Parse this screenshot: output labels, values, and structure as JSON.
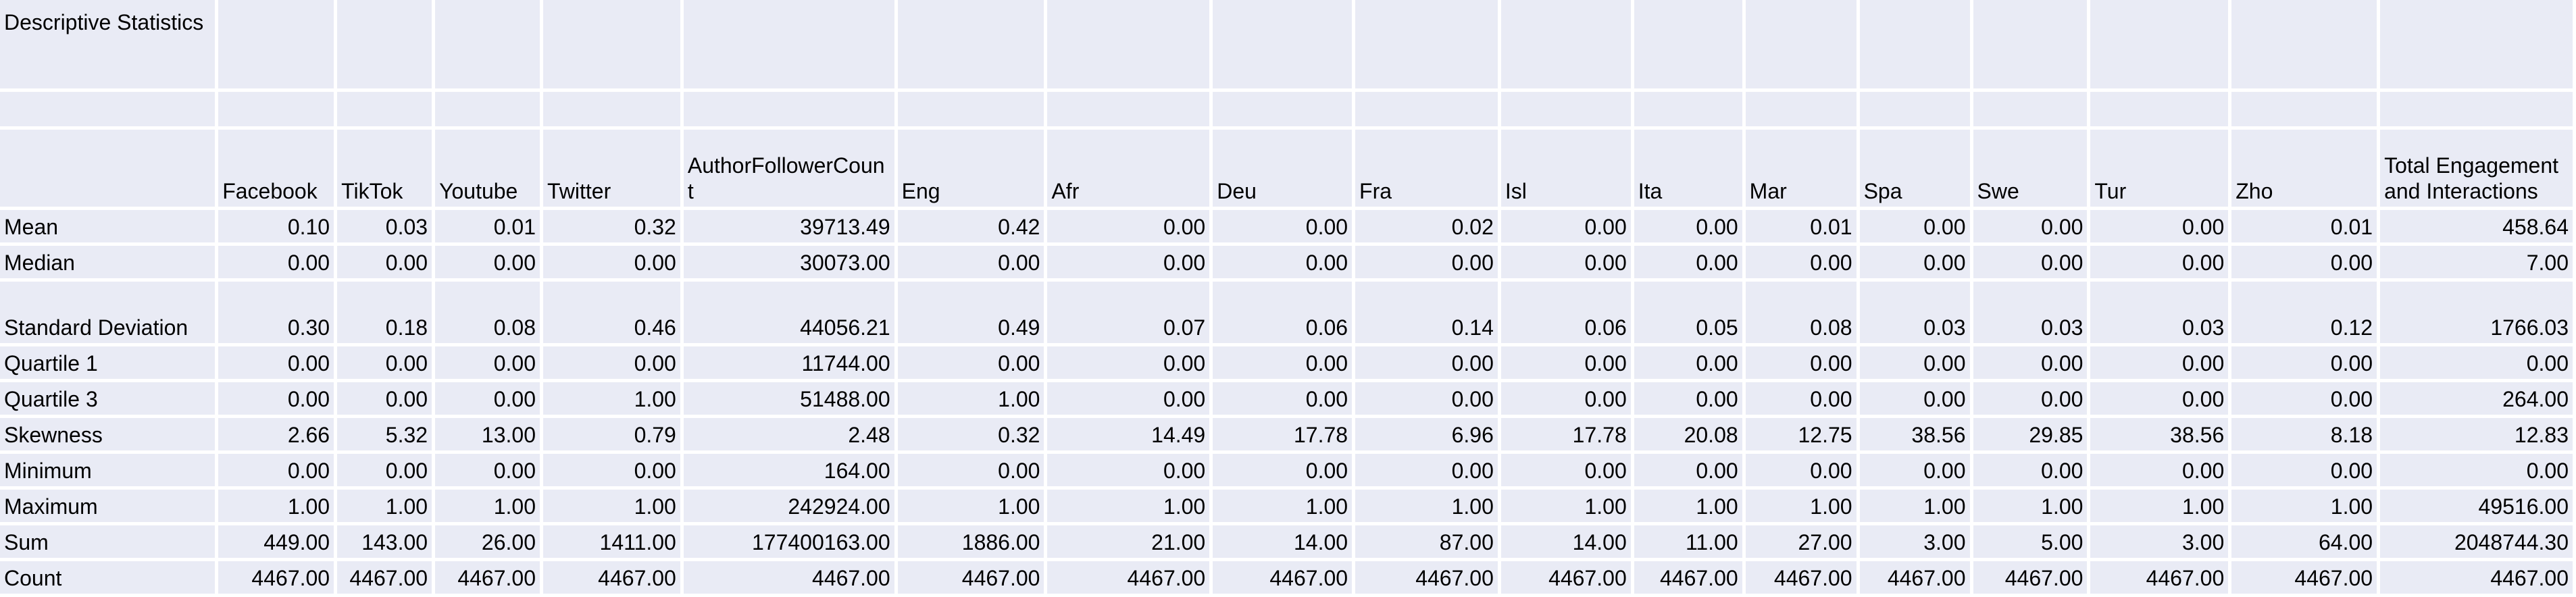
{
  "title": "Descriptive Statistics",
  "columns": [
    "Facebook",
    "TikTok",
    "Youtube",
    "Twitter",
    "AuthorFollowerCount",
    "Eng",
    "Afr",
    "Deu",
    "Fra",
    "Isl",
    "Ita",
    "Mar",
    "Spa",
    "Swe",
    "Tur",
    "Zho",
    "Total Engagement and Interactions"
  ],
  "rows": [
    {
      "label": "Mean",
      "values": [
        "0.10",
        "0.03",
        "0.01",
        "0.32",
        "39713.49",
        "0.42",
        "0.00",
        "0.00",
        "0.02",
        "0.00",
        "0.00",
        "0.01",
        "0.00",
        "0.00",
        "0.00",
        "0.01",
        "458.64"
      ]
    },
    {
      "label": "Median",
      "values": [
        "0.00",
        "0.00",
        "0.00",
        "0.00",
        "30073.00",
        "0.00",
        "0.00",
        "0.00",
        "0.00",
        "0.00",
        "0.00",
        "0.00",
        "0.00",
        "0.00",
        "0.00",
        "0.00",
        "7.00"
      ]
    },
    {
      "label": "Standard Deviation",
      "values": [
        "0.30",
        "0.18",
        "0.08",
        "0.46",
        "44056.21",
        "0.49",
        "0.07",
        "0.06",
        "0.14",
        "0.06",
        "0.05",
        "0.08",
        "0.03",
        "0.03",
        "0.03",
        "0.12",
        "1766.03"
      ]
    },
    {
      "label": "Quartile 1",
      "values": [
        "0.00",
        "0.00",
        "0.00",
        "0.00",
        "11744.00",
        "0.00",
        "0.00",
        "0.00",
        "0.00",
        "0.00",
        "0.00",
        "0.00",
        "0.00",
        "0.00",
        "0.00",
        "0.00",
        "0.00"
      ]
    },
    {
      "label": "Quartile 3",
      "values": [
        "0.00",
        "0.00",
        "0.00",
        "1.00",
        "51488.00",
        "1.00",
        "0.00",
        "0.00",
        "0.00",
        "0.00",
        "0.00",
        "0.00",
        "0.00",
        "0.00",
        "0.00",
        "0.00",
        "264.00"
      ]
    },
    {
      "label": "Skewness",
      "values": [
        "2.66",
        "5.32",
        "13.00",
        "0.79",
        "2.48",
        "0.32",
        "14.49",
        "17.78",
        "6.96",
        "17.78",
        "20.08",
        "12.75",
        "38.56",
        "29.85",
        "38.56",
        "8.18",
        "12.83"
      ]
    },
    {
      "label": "Minimum",
      "values": [
        "0.00",
        "0.00",
        "0.00",
        "0.00",
        "164.00",
        "0.00",
        "0.00",
        "0.00",
        "0.00",
        "0.00",
        "0.00",
        "0.00",
        "0.00",
        "0.00",
        "0.00",
        "0.00",
        "0.00"
      ]
    },
    {
      "label": "Maximum",
      "values": [
        "1.00",
        "1.00",
        "1.00",
        "1.00",
        "242924.00",
        "1.00",
        "1.00",
        "1.00",
        "1.00",
        "1.00",
        "1.00",
        "1.00",
        "1.00",
        "1.00",
        "1.00",
        "1.00",
        "49516.00"
      ]
    },
    {
      "label": "Sum",
      "values": [
        "449.00",
        "143.00",
        "26.00",
        "1411.00",
        "177400163.00",
        "1886.00",
        "21.00",
        "14.00",
        "87.00",
        "14.00",
        "11.00",
        "27.00",
        "3.00",
        "5.00",
        "3.00",
        "64.00",
        "2048744.30"
      ]
    },
    {
      "label": "Count",
      "values": [
        "4467.00",
        "4467.00",
        "4467.00",
        "4467.00",
        "4467.00",
        "4467.00",
        "4467.00",
        "4467.00",
        "4467.00",
        "4467.00",
        "4467.00",
        "4467.00",
        "4467.00",
        "4467.00",
        "4467.00",
        "4467.00",
        "4467.00"
      ]
    }
  ]
}
